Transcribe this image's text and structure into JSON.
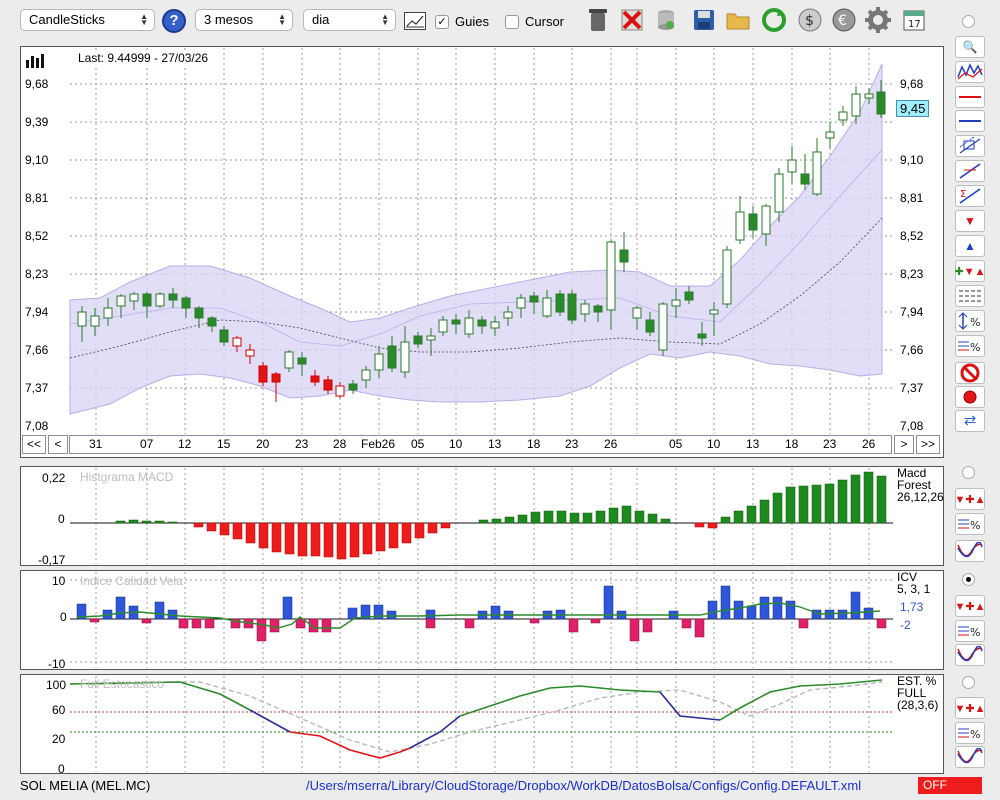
{
  "toolbar": {
    "chart_type": "CandleSticks",
    "period": "3 mesos",
    "interval": "dia",
    "guies_label": "Guies",
    "guies_checked": true,
    "cursor_label": "Cursor",
    "cursor_checked": false,
    "calendar_day": "17"
  },
  "main_chart": {
    "last": "Last: 9.44999 - 27/03/26",
    "current_price": "9,45",
    "y_labels": [
      "9,68",
      "9,39",
      "9,10",
      "8,81",
      "8,52",
      "8,23",
      "7,94",
      "7,66",
      "7,37",
      "7,08"
    ]
  },
  "nav": {
    "first": "<<",
    "prev": "<",
    "next": ">",
    "last": ">>",
    "date_labels": [
      "31",
      "07",
      "12",
      "15",
      "20",
      "23",
      "28",
      "Feb26",
      "05",
      "10",
      "13",
      "18",
      "23",
      "26",
      "05",
      "10",
      "13",
      "18",
      "23",
      "26"
    ]
  },
  "macd": {
    "title": "Histgrama MACD",
    "y_labels": [
      "0,22",
      "0",
      "-0,17"
    ],
    "legend": [
      "Macd",
      "Forest",
      "26,12,26"
    ]
  },
  "icv": {
    "title": "Indice Calidad Vela",
    "y_labels": [
      "10",
      "0",
      "-10"
    ],
    "legend": [
      "ICV",
      "5, 3, 1"
    ],
    "value1": "1,73",
    "value2": "-2"
  },
  "stoch": {
    "title": "Full Estocastico",
    "y_labels": [
      "100",
      "60",
      "20",
      "0"
    ],
    "legend": [
      "EST. %",
      "FULL",
      "(28,3,6)"
    ]
  },
  "status": {
    "ticker": "SOL MELIA (MEL.MC)",
    "path": "/Users/mserra/Library/CloudStorage/Dropbox/WorkDB/DatosBolsa/Configs/Config.DEFAULT.xml",
    "off": "OFF"
  },
  "colors": {
    "up": "#2a8a2a",
    "down": "#e01515",
    "band": "#d9d3f5",
    "ichi": "#3b47d6",
    "status_off": "#ee1c1c"
  },
  "chart_data": {
    "type": "candlestick",
    "note": "approximate OHLC readings, 60 sessions",
    "y_range": [
      7.08,
      9.68
    ],
    "ohlc": [
      [
        7.82,
        7.94,
        7.74,
        7.92
      ],
      [
        7.9,
        7.95,
        7.82,
        7.85
      ],
      [
        7.9,
        8.02,
        7.85,
        7.98
      ],
      [
        7.95,
        8.06,
        7.9,
        8.02
      ],
      [
        8.0,
        8.08,
        7.95,
        8.05
      ],
      [
        8.07,
        8.1,
        7.98,
        7.99
      ],
      [
        7.98,
        8.08,
        7.95,
        8.06
      ],
      [
        8.08,
        8.12,
        8.0,
        8.03
      ],
      [
        8.02,
        8.06,
        7.92,
        7.96
      ],
      [
        7.96,
        8.0,
        7.85,
        7.88
      ],
      [
        7.9,
        7.92,
        7.81,
        7.84
      ],
      [
        7.82,
        7.85,
        7.72,
        7.74
      ],
      [
        7.72,
        7.76,
        7.62,
        7.66
      ],
      [
        7.66,
        7.7,
        7.58,
        7.62
      ],
      [
        7.55,
        7.58,
        7.4,
        7.42
      ],
      [
        7.48,
        7.52,
        7.3,
        7.46
      ],
      [
        7.53,
        7.66,
        7.5,
        7.64
      ],
      [
        7.6,
        7.62,
        7.54,
        7.56
      ],
      [
        7.46,
        7.5,
        7.4,
        7.42
      ],
      [
        7.44,
        7.46,
        7.36,
        7.38
      ],
      [
        7.36,
        7.42,
        7.34,
        7.4
      ],
      [
        7.44,
        7.48,
        7.42,
        7.46
      ],
      [
        7.47,
        7.56,
        7.44,
        7.54
      ],
      [
        7.55,
        7.65,
        7.5,
        7.63
      ],
      [
        7.52,
        7.72,
        7.5,
        7.7
      ],
      [
        7.77,
        7.84,
        7.74,
        7.79
      ],
      [
        7.8,
        7.86,
        7.68,
        7.78
      ],
      [
        7.81,
        7.9,
        7.78,
        7.88
      ],
      [
        7.89,
        7.92,
        7.8,
        7.86
      ],
      [
        7.82,
        7.92,
        7.78,
        7.9
      ],
      [
        7.92,
        7.96,
        7.86,
        7.88
      ],
      [
        7.86,
        7.92,
        7.82,
        7.9
      ],
      [
        7.9,
        7.96,
        7.86,
        7.94
      ],
      [
        7.96,
        8.04,
        7.92,
        8.02
      ],
      [
        8.04,
        8.08,
        7.98,
        7.99
      ],
      [
        7.94,
        8.1,
        7.9,
        8.08
      ],
      [
        8.08,
        8.1,
        7.94,
        7.96
      ],
      [
        7.94,
        8.02,
        7.9,
        7.98
      ],
      [
        8.0,
        8.04,
        7.92,
        7.94
      ],
      [
        7.92,
        8.26,
        7.88,
        8.24
      ],
      [
        8.17,
        8.32,
        8.12,
        8.14
      ],
      [
        7.96,
        8.0,
        7.88,
        7.9
      ],
      [
        7.84,
        7.88,
        7.74,
        7.76
      ],
      [
        7.78,
        8.02,
        7.7,
        8.0
      ],
      [
        8.0,
        8.12,
        7.92,
        8.08
      ],
      [
        8.06,
        8.1,
        7.98,
        8.02
      ],
      [
        7.8,
        7.84,
        7.68,
        7.78
      ],
      [
        7.94,
        8.25,
        7.9,
        8.22
      ],
      [
        8.26,
        8.5,
        8.22,
        8.48
      ],
      [
        8.52,
        8.56,
        8.44,
        8.46
      ],
      [
        8.48,
        8.68,
        8.4,
        8.64
      ],
      [
        8.68,
        8.98,
        8.62,
        8.94
      ],
      [
        8.92,
        9.24,
        8.88,
        9.0
      ],
      [
        8.98,
        9.02,
        8.84,
        8.88
      ],
      [
        8.82,
        9.18,
        8.78,
        9.14
      ],
      [
        9.18,
        9.32,
        9.1,
        9.28
      ],
      [
        9.42,
        9.44,
        9.36,
        9.4
      ],
      [
        9.5,
        9.7,
        9.46,
        9.66
      ],
      [
        9.64,
        9.72,
        9.58,
        9.6
      ],
      [
        9.64,
        9.7,
        9.4,
        9.45
      ]
    ]
  }
}
